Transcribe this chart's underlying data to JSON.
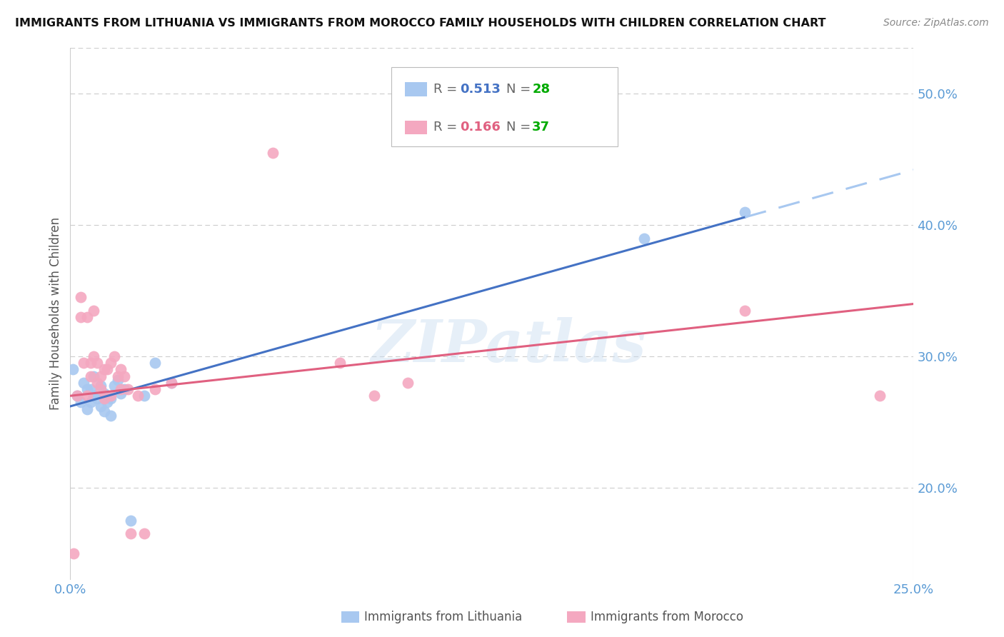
{
  "title": "IMMIGRANTS FROM LITHUANIA VS IMMIGRANTS FROM MOROCCO FAMILY HOUSEHOLDS WITH CHILDREN CORRELATION CHART",
  "source": "Source: ZipAtlas.com",
  "ylabel": "Family Households with Children",
  "xlim": [
    0.0,
    0.25
  ],
  "ylim": [
    0.13,
    0.535
  ],
  "xticks": [
    0.0,
    0.25
  ],
  "xtick_labels": [
    "0.0%",
    "25.0%"
  ],
  "yticks_right": [
    0.2,
    0.3,
    0.4,
    0.5
  ],
  "r_lithuania": 0.513,
  "n_lithuania": 28,
  "r_morocco": 0.166,
  "n_morocco": 37,
  "lithuania_color": "#A8C8F0",
  "morocco_color": "#F4A8C0",
  "line_lith_color": "#4472C4",
  "line_mor_color": "#E06080",
  "line_dashed_color": "#A8C8F0",
  "axis_color": "#5B9BD5",
  "grid_color": "#CCCCCC",
  "watermark": "ZIPatlas",
  "lith_x": [
    0.0008,
    0.002,
    0.003,
    0.004,
    0.005,
    0.005,
    0.006,
    0.006,
    0.007,
    0.007,
    0.008,
    0.009,
    0.009,
    0.01,
    0.01,
    0.011,
    0.012,
    0.012,
    0.013,
    0.014,
    0.015,
    0.016,
    0.018,
    0.022,
    0.025,
    0.03,
    0.17,
    0.2
  ],
  "lith_y": [
    0.29,
    0.27,
    0.265,
    0.28,
    0.275,
    0.26,
    0.275,
    0.265,
    0.285,
    0.27,
    0.268,
    0.278,
    0.262,
    0.272,
    0.258,
    0.265,
    0.268,
    0.255,
    0.278,
    0.282,
    0.272,
    0.275,
    0.175,
    0.27,
    0.295,
    0.28,
    0.39,
    0.41
  ],
  "mor_x": [
    0.001,
    0.002,
    0.003,
    0.003,
    0.004,
    0.005,
    0.005,
    0.006,
    0.006,
    0.007,
    0.007,
    0.008,
    0.008,
    0.009,
    0.009,
    0.01,
    0.01,
    0.011,
    0.012,
    0.012,
    0.013,
    0.014,
    0.015,
    0.015,
    0.016,
    0.017,
    0.018,
    0.02,
    0.022,
    0.025,
    0.03,
    0.06,
    0.08,
    0.09,
    0.1,
    0.2,
    0.24
  ],
  "mor_y": [
    0.15,
    0.27,
    0.33,
    0.345,
    0.295,
    0.27,
    0.33,
    0.285,
    0.295,
    0.3,
    0.335,
    0.295,
    0.28,
    0.285,
    0.275,
    0.29,
    0.268,
    0.29,
    0.27,
    0.295,
    0.3,
    0.285,
    0.275,
    0.29,
    0.285,
    0.275,
    0.165,
    0.27,
    0.165,
    0.275,
    0.28,
    0.455,
    0.295,
    0.27,
    0.28,
    0.335,
    0.27
  ]
}
